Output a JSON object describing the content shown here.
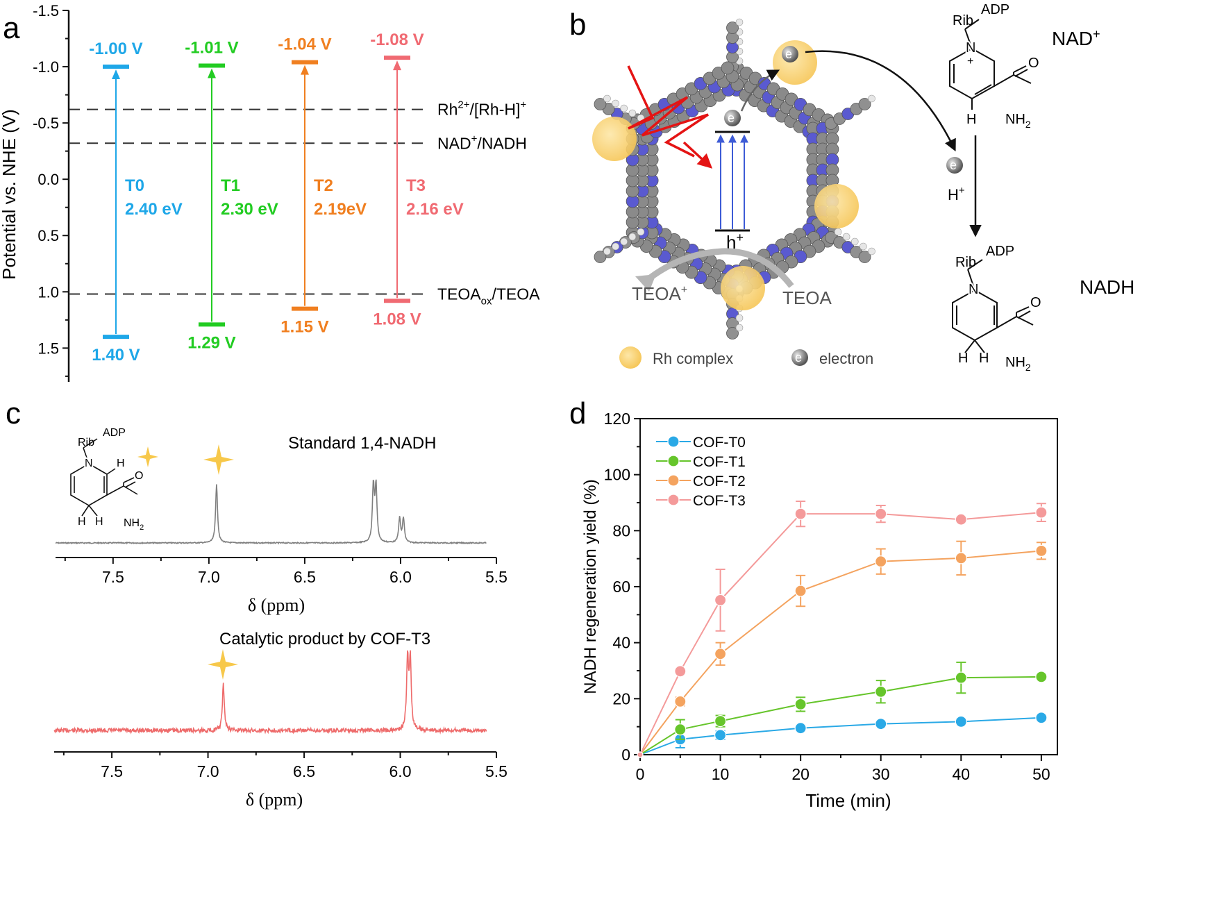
{
  "panel_labels": {
    "a": "a",
    "b": "b",
    "c": "c",
    "d": "d"
  },
  "colors": {
    "T0": "#1ea7e8",
    "T1": "#22cc22",
    "T2": "#f07f20",
    "T3": "#f06a72",
    "d_T0": "#2aa9e6",
    "d_T1": "#66c52b",
    "d_T2": "#f4a35f",
    "d_T3": "#f49a9a",
    "rh": "#f8d27a",
    "spectrum_std": "#7f7f7f",
    "spectrum_cat": "#ee6b6b",
    "star": "#f7c84a"
  },
  "chart_data": [
    {
      "id": "a",
      "type": "energy-level diagram",
      "ylabel": "Potential vs. NHE (V)",
      "ylim": [
        -1.5,
        1.8
      ],
      "yticks": [
        "-1.5",
        "-1.0",
        "-0.5",
        "0.0",
        "0.5",
        "1.0",
        "1.5"
      ],
      "levels": [
        {
          "name": "T0",
          "cb": -1.0,
          "vb": 1.4,
          "cb_label": "-1.00 V",
          "vb_label": "1.40 V",
          "gap_label": "2.40 eV"
        },
        {
          "name": "T1",
          "cb": -1.01,
          "vb": 1.29,
          "cb_label": "-1.01 V",
          "vb_label": "1.29 V",
          "gap_label": "2.30 eV"
        },
        {
          "name": "T2",
          "cb": -1.04,
          "vb": 1.15,
          "cb_label": "-1.04 V",
          "vb_label": "1.15 V",
          "gap_label": "2.19eV"
        },
        {
          "name": "T3",
          "cb": -1.08,
          "vb": 1.08,
          "cb_label": "-1.08 V",
          "vb_label": "1.08 V",
          "gap_label": "2.16 eV"
        }
      ],
      "references": [
        {
          "potential": -0.62,
          "label": "Rh",
          "sup": "2+",
          "label2": "/[Rh-H]",
          "sup2": "+"
        },
        {
          "potential": -0.32,
          "label": "NAD",
          "sup": "+",
          "label2": "/NADH",
          "sup2": ""
        },
        {
          "potential": 1.02,
          "label": "TEOA",
          "sub": "ox",
          "label2": "/TEOA"
        }
      ]
    },
    {
      "id": "c1",
      "type": "line",
      "title": "Standard 1,4-NADH",
      "xlabel": "δ (ppm)",
      "xlim": [
        7.8,
        5.5
      ],
      "xticks": [
        "7.5",
        "7.0",
        "6.5",
        "6.0",
        "5.5"
      ],
      "peaks": [
        6.96,
        6.14,
        6.13,
        6.0,
        5.98
      ]
    },
    {
      "id": "c2",
      "type": "line",
      "title": "Catalytic product by COF-T3",
      "xlabel": "δ (ppm)",
      "xlim": [
        7.8,
        5.5
      ],
      "xticks": [
        "7.5",
        "7.0",
        "6.5",
        "6.0",
        "5.5"
      ],
      "peaks": [
        6.92,
        5.96,
        5.95
      ]
    },
    {
      "id": "d",
      "type": "line",
      "xlabel": "Time (min)",
      "ylabel": "NADH regeneration yield (%)",
      "xlim": [
        0,
        52
      ],
      "ylim": [
        0,
        120
      ],
      "xticks": [
        0,
        10,
        20,
        30,
        40,
        50
      ],
      "yticks": [
        0,
        20,
        40,
        60,
        80,
        100,
        120
      ],
      "legend": "top-left",
      "x": [
        0,
        5,
        10,
        20,
        30,
        40,
        50
      ],
      "series": [
        {
          "name": "COF-T0",
          "values": [
            0,
            5.5,
            7,
            9.5,
            11,
            11.8,
            13.2
          ],
          "errors": [
            0,
            3,
            1.5,
            1,
            1,
            1,
            1
          ]
        },
        {
          "name": "COF-T1",
          "values": [
            0,
            9,
            12,
            18,
            22.5,
            27.5,
            27.8
          ],
          "errors": [
            0,
            3.5,
            2,
            2.5,
            4,
            5.5,
            1
          ]
        },
        {
          "name": "COF-T2",
          "values": [
            0,
            19,
            36,
            58.5,
            69,
            70.2,
            72.8
          ],
          "errors": [
            0,
            1.5,
            4,
            5.5,
            4.5,
            6,
            3
          ]
        },
        {
          "name": "COF-T3",
          "values": [
            0,
            29.8,
            55.2,
            86,
            86,
            84,
            86.5
          ],
          "errors": [
            0,
            1,
            11,
            4.5,
            3,
            1,
            3.2
          ]
        }
      ]
    }
  ],
  "panel_b": {
    "electron": "e",
    "electron_sup": "-",
    "hole": "h",
    "hole_sup": "+",
    "teoa_plus": "TEOA",
    "teoa_plus_sup": "+",
    "teoa": "TEOA",
    "legend_rh": "Rh complex",
    "legend_electron": "electron",
    "nad_label": "NAD",
    "nad_sup": "+",
    "nadh_label": "NADH",
    "proton": "H",
    "proton_sup": "+",
    "rib": "Rib",
    "adp": "ADP",
    "n": "N",
    "plus": "+",
    "o": "O",
    "nh2": "NH",
    "nh2_sub": "2",
    "h": "H"
  }
}
